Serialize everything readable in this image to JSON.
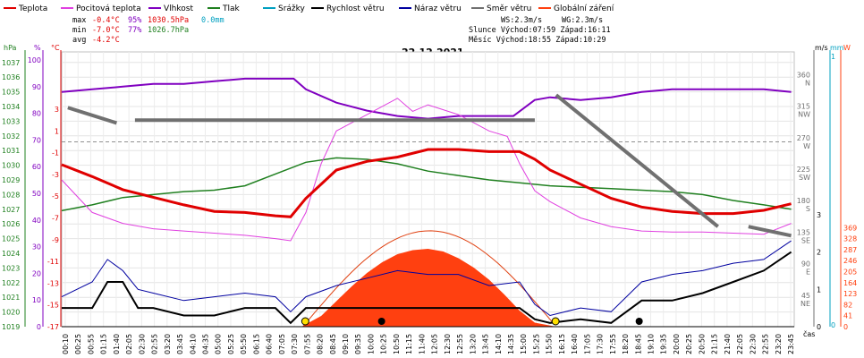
{
  "legend": [
    {
      "label": "Teplota",
      "color": "#e00000"
    },
    {
      "label": "Pocitová teplota",
      "color": "#e040e0"
    },
    {
      "label": "Vlhkost",
      "color": "#8000c0"
    },
    {
      "label": "Tlak",
      "color": "#208020"
    },
    {
      "label": "Srážky",
      "color": "#00a0c0"
    },
    {
      "label": "Rychlost větru",
      "color": "#000000"
    },
    {
      "label": "Náraz větru",
      "color": "#0000a0"
    },
    {
      "label": "Směr větru",
      "color": "#707070"
    },
    {
      "label": "Globální záření",
      "color": "#ff4010"
    }
  ],
  "stats": {
    "max_label": "max",
    "max_temp": "-0.4°C",
    "max_hum": "95%",
    "max_press": "1030.5hPa",
    "max_rain": "0.0mm",
    "min_label": "min",
    "min_temp": "-7.0°C",
    "min_hum": "77%",
    "min_press": "1026.7hPa",
    "avg_label": "avg",
    "avg_temp": "-4.2°C"
  },
  "wind_info": {
    "ws": "WS:2.3m/s",
    "wg": "WG:2.3m/s"
  },
  "sun_info": "Slunce Východ:07:59  Západ:16:11",
  "moon_info": "Měsíc  Východ:18:55  Západ:10:29",
  "chart_data": {
    "type": "line",
    "title": "22.12.2021",
    "x_unit": "čas",
    "x_ticks": [
      "00:10",
      "00:25",
      "00:55",
      "01:15",
      "01:40",
      "02:05",
      "02:30",
      "02:55",
      "03:20",
      "03:45",
      "04:10",
      "04:35",
      "05:00",
      "05:25",
      "05:50",
      "06:15",
      "06:40",
      "07:05",
      "07:30",
      "07:55",
      "08:20",
      "08:45",
      "09:10",
      "09:35",
      "10:00",
      "10:25",
      "10:50",
      "11:15",
      "11:40",
      "12:05",
      "12:30",
      "12:55",
      "13:20",
      "13:45",
      "14:10",
      "14:35",
      "15:00",
      "15:25",
      "15:50",
      "16:15",
      "16:40",
      "17:05",
      "17:30",
      "17:55",
      "18:20",
      "18:45",
      "19:10",
      "19:35",
      "20:00",
      "20:25",
      "20:50",
      "21:15",
      "21:40",
      "22:05",
      "22:30",
      "22:55",
      "23:20",
      "23:45"
    ],
    "axes": {
      "pressure": {
        "unit": "hPa",
        "ticks": [
          "1037",
          "1036",
          "1035",
          "1034",
          "1033",
          "1032",
          "1031",
          "1030",
          "1029",
          "1028",
          "1027",
          "1026",
          "1025",
          "1024",
          "1023",
          "1022",
          "1021",
          "1020",
          "1019"
        ]
      },
      "humidity": {
        "unit": "%",
        "ticks": [
          "100",
          "90",
          "80",
          "70",
          "60",
          "50",
          "40",
          "30",
          "20",
          "10",
          "0"
        ]
      },
      "temperature": {
        "unit": "°C",
        "ticks": [
          "3",
          "1",
          "-1",
          "-3",
          "-5",
          "-7",
          "-9",
          "-11",
          "-13",
          "-15",
          "-17"
        ]
      },
      "direction": {
        "ticks": [
          "360 N",
          "315 NW",
          "270 W",
          "225 SW",
          "180 S",
          "135 SE",
          "90 E",
          "45 NE"
        ]
      },
      "wind": {
        "unit": "m/s",
        "ticks": [
          "3",
          "2",
          "1",
          "0"
        ]
      },
      "rain": {
        "unit": "mm",
        "ticks": [
          "1",
          "0"
        ]
      },
      "radiation": {
        "unit": "W",
        "ticks": [
          "369",
          "328",
          "287",
          "246",
          "205",
          "164",
          "123",
          "82",
          "41",
          "0"
        ]
      }
    },
    "series": [
      {
        "name": "Teplota",
        "unit": "°C",
        "x": [
          0,
          1,
          2,
          3,
          4,
          5,
          6,
          7,
          7.5,
          8,
          9,
          10,
          11,
          12,
          13,
          14,
          15,
          15.5,
          16,
          17,
          18,
          19,
          20,
          21,
          22,
          23,
          23.9
        ],
        "values": [
          -2.1,
          -3.2,
          -4.4,
          -5.1,
          -5.8,
          -6.4,
          -6.5,
          -6.8,
          -6.9,
          -5.2,
          -2.6,
          -1.8,
          -1.4,
          -0.7,
          -0.7,
          -0.9,
          -0.9,
          -1.6,
          -2.6,
          -3.9,
          -5.2,
          -6.0,
          -6.4,
          -6.6,
          -6.6,
          -6.3,
          -5.7
        ]
      },
      {
        "name": "Pocitová teplota",
        "unit": "°C",
        "x": [
          0,
          1,
          2,
          3,
          4,
          5,
          6,
          7,
          7.5,
          8,
          8.5,
          9,
          10,
          11,
          11.5,
          12,
          13,
          14,
          14.6,
          15,
          15.5,
          16,
          17,
          18,
          19,
          20,
          21,
          22,
          23,
          23.9
        ],
        "values": [
          -3.5,
          -6.5,
          -7.5,
          -8.0,
          -8.2,
          -8.4,
          -8.6,
          -8.9,
          -9.1,
          -6.5,
          -2.0,
          1.0,
          2.5,
          4.0,
          2.8,
          3.4,
          2.5,
          1.0,
          0.5,
          -2.0,
          -4.5,
          -5.5,
          -7.0,
          -7.8,
          -8.2,
          -8.3,
          -8.3,
          -8.4,
          -8.5,
          -7.5
        ]
      },
      {
        "name": "Vlhkost",
        "unit": "%",
        "x": [
          0,
          1,
          2,
          3,
          4,
          5,
          6,
          7,
          7.6,
          8,
          9,
          10,
          11,
          12,
          13,
          14,
          14.8,
          15.5,
          16,
          17,
          18,
          19,
          20,
          21,
          22,
          23,
          23.9
        ],
        "values": [
          88,
          89,
          90,
          91,
          91,
          92,
          93,
          93,
          93,
          89,
          84,
          81,
          79,
          78,
          79,
          79,
          79,
          85,
          86,
          85,
          86,
          88,
          89,
          89,
          89,
          89,
          88
        ]
      },
      {
        "name": "Tlak",
        "unit": "hPa",
        "x": [
          0,
          1,
          2,
          3,
          4,
          5,
          6,
          7,
          8,
          9,
          10,
          11,
          12,
          13,
          14,
          15,
          16,
          17,
          18,
          19,
          20,
          21,
          22,
          23,
          23.9
        ],
        "values": [
          1026.9,
          1027.3,
          1027.8,
          1028.0,
          1028.2,
          1028.3,
          1028.6,
          1029.4,
          1030.2,
          1030.5,
          1030.4,
          1030.1,
          1029.6,
          1029.3,
          1029.0,
          1028.8,
          1028.6,
          1028.5,
          1028.4,
          1028.3,
          1028.2,
          1028.0,
          1027.6,
          1027.3,
          1027.0
        ]
      },
      {
        "name": "Srážky",
        "unit": "mm",
        "x": [
          0,
          23.9
        ],
        "values": [
          0.0,
          0.0
        ]
      },
      {
        "name": "Rychlost větru",
        "unit": "m/s",
        "x": [
          0,
          1,
          1.5,
          2,
          2.5,
          3,
          4,
          5,
          6,
          7,
          7.5,
          8,
          9,
          10,
          11,
          12,
          13,
          14,
          15,
          15.5,
          16,
          17,
          18,
          19,
          20,
          21,
          22,
          23,
          23.9
        ],
        "values": [
          0.5,
          0.5,
          1.2,
          1.2,
          0.5,
          0.5,
          0.3,
          0.3,
          0.5,
          0.5,
          0.1,
          0.5,
          0.5,
          0.5,
          0.5,
          0.5,
          0.5,
          0.5,
          0.5,
          0.2,
          0.1,
          0.2,
          0.1,
          0.7,
          0.7,
          0.9,
          1.2,
          1.5,
          2.0
        ]
      },
      {
        "name": "Náraz větru",
        "unit": "m/s",
        "x": [
          0,
          1,
          1.5,
          2,
          2.5,
          3,
          4,
          5,
          6,
          7,
          7.5,
          8,
          9,
          10,
          11,
          12,
          13,
          14,
          15,
          15.5,
          16,
          17,
          18,
          19,
          20,
          21,
          22,
          23,
          23.9
        ],
        "values": [
          0.8,
          1.2,
          1.8,
          1.5,
          1.0,
          0.9,
          0.7,
          0.8,
          0.9,
          0.8,
          0.4,
          0.8,
          1.1,
          1.3,
          1.5,
          1.4,
          1.4,
          1.1,
          1.2,
          0.6,
          0.3,
          0.5,
          0.4,
          1.2,
          1.4,
          1.5,
          1.7,
          1.8,
          2.3
        ]
      },
      {
        "name": "Směr větru",
        "unit": "°",
        "x": [
          0.2,
          1.8,
          2.4,
          15.5,
          16.2,
          21.5,
          22.5,
          23.9
        ],
        "values": [
          313,
          291,
          295,
          295,
          331,
          143,
          143,
          130
        ]
      },
      {
        "name": "Globální záření",
        "unit": "W/m²",
        "x": [
          7.9,
          8.5,
          9,
          9.5,
          10,
          10.5,
          11,
          11.5,
          12,
          12.5,
          13,
          13.5,
          14,
          14.5,
          15,
          15.5,
          16.2
        ],
        "values": [
          3,
          40,
          95,
          150,
          200,
          240,
          270,
          285,
          290,
          280,
          255,
          220,
          175,
          120,
          60,
          15,
          0
        ]
      }
    ]
  }
}
